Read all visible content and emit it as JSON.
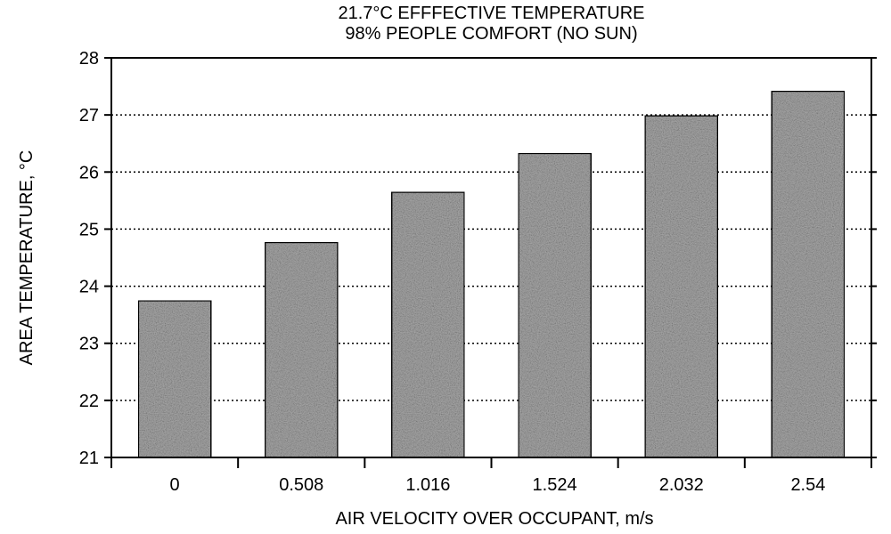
{
  "chart_data": {
    "type": "bar",
    "title": [
      "21.7°C EFFFECTIVE TEMPERATURE",
      "98% PEOPLE COMFORT (NO SUN)"
    ],
    "xlabel": "AIR VELOCITY OVER OCCUPANT, m/s",
    "ylabel": "AREA TEMPERATURE, °C",
    "categories": [
      "0",
      "0.508",
      "1.016",
      "1.524",
      "2.032",
      "2.54"
    ],
    "values": [
      23.75,
      24.77,
      25.65,
      26.33,
      26.99,
      27.42
    ],
    "ylim": [
      21,
      28
    ],
    "yticks": [
      21,
      22,
      23,
      24,
      25,
      26,
      27,
      28
    ],
    "grid": "horizontal-dotted",
    "bar_fill": "#a8a8a8",
    "grid_color": "#000000"
  }
}
